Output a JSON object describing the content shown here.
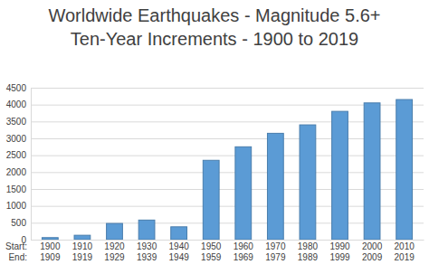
{
  "chart_data": {
    "type": "bar",
    "title": "Worldwide Earthquakes - Magnitude 5.6+",
    "subtitle": "Ten-Year Increments - 1900 to 2019",
    "category_row_labels": [
      "Start:",
      "End:"
    ],
    "categories": [
      "1900\n1909",
      "1910\n1919",
      "1920\n1929",
      "1930\n1939",
      "1940\n1949",
      "1950\n1959",
      "1960\n1969",
      "1970\n1979",
      "1980\n1989",
      "1990\n1999",
      "2000\n2009",
      "2010\n2019"
    ],
    "values": [
      60,
      130,
      480,
      580,
      380,
      2350,
      2750,
      3150,
      3400,
      3800,
      4050,
      4150
    ],
    "color": "#5b9bd5",
    "ylim": [
      0,
      4500
    ],
    "yticks": [
      0,
      500,
      1000,
      1500,
      2000,
      2500,
      3000,
      3500,
      4000,
      4500
    ],
    "grid": true
  }
}
